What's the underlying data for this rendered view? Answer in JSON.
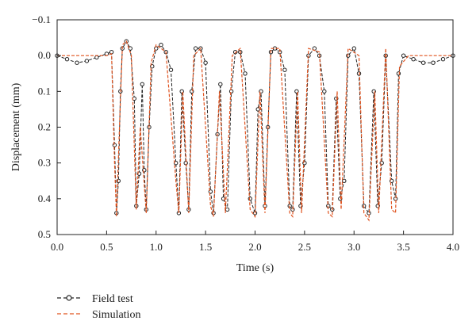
{
  "chart_data": {
    "type": "line",
    "title": "",
    "xlabel": "Time (s)",
    "ylabel": "Displacement (mm)",
    "xlim": [
      0.0,
      4.0
    ],
    "ylim": [
      -0.1,
      0.5
    ],
    "y_inverted": true,
    "grid": false,
    "legend_position": "below-left",
    "x_ticks": [
      0.0,
      0.5,
      1.0,
      1.5,
      2.0,
      2.5,
      3.0,
      3.5,
      4.0
    ],
    "x_tick_labels": [
      "0.0",
      "0.5",
      "1.0",
      "1.5",
      "2.0",
      "2.5",
      "3.0",
      "3.5",
      "4.0"
    ],
    "y_ticks": [
      -0.1,
      0.0,
      0.1,
      0.2,
      0.3,
      0.4,
      0.5
    ],
    "y_tick_labels": [
      "−0.1",
      "0.0",
      "0.1",
      "0.2",
      "0.3",
      "0.4",
      "0.5"
    ],
    "series": [
      {
        "name": "Field test",
        "color": "#222222",
        "style": "dashed-with-circle-markers",
        "points": [
          [
            0.0,
            0.0
          ],
          [
            0.1,
            0.01
          ],
          [
            0.2,
            0.02
          ],
          [
            0.3,
            0.015
          ],
          [
            0.4,
            0.005
          ],
          [
            0.5,
            -0.005
          ],
          [
            0.55,
            -0.01
          ],
          [
            0.58,
            0.25
          ],
          [
            0.6,
            0.44
          ],
          [
            0.62,
            0.35
          ],
          [
            0.64,
            0.1
          ],
          [
            0.66,
            -0.02
          ],
          [
            0.7,
            -0.04
          ],
          [
            0.74,
            -0.02
          ],
          [
            0.78,
            0.12
          ],
          [
            0.8,
            0.42
          ],
          [
            0.83,
            0.33
          ],
          [
            0.86,
            0.08
          ],
          [
            0.88,
            0.32
          ],
          [
            0.9,
            0.43
          ],
          [
            0.93,
            0.2
          ],
          [
            0.96,
            0.03
          ],
          [
            1.0,
            -0.02
          ],
          [
            1.05,
            -0.03
          ],
          [
            1.1,
            -0.01
          ],
          [
            1.15,
            0.04
          ],
          [
            1.2,
            0.3
          ],
          [
            1.23,
            0.44
          ],
          [
            1.26,
            0.1
          ],
          [
            1.3,
            0.3
          ],
          [
            1.33,
            0.43
          ],
          [
            1.36,
            0.1
          ],
          [
            1.4,
            -0.02
          ],
          [
            1.45,
            -0.02
          ],
          [
            1.5,
            0.02
          ],
          [
            1.55,
            0.38
          ],
          [
            1.58,
            0.44
          ],
          [
            1.62,
            0.22
          ],
          [
            1.65,
            0.08
          ],
          [
            1.68,
            0.4
          ],
          [
            1.72,
            0.43
          ],
          [
            1.76,
            0.1
          ],
          [
            1.8,
            -0.01
          ],
          [
            1.85,
            -0.01
          ],
          [
            1.9,
            0.05
          ],
          [
            1.95,
            0.4
          ],
          [
            2.0,
            0.44
          ],
          [
            2.03,
            0.15
          ],
          [
            2.06,
            0.1
          ],
          [
            2.1,
            0.42
          ],
          [
            2.13,
            0.2
          ],
          [
            2.16,
            -0.01
          ],
          [
            2.2,
            -0.02
          ],
          [
            2.25,
            -0.01
          ],
          [
            2.3,
            0.04
          ],
          [
            2.35,
            0.42
          ],
          [
            2.38,
            0.43
          ],
          [
            2.42,
            0.1
          ],
          [
            2.46,
            0.42
          ],
          [
            2.5,
            0.3
          ],
          [
            2.54,
            0.0
          ],
          [
            2.6,
            -0.02
          ],
          [
            2.65,
            0.0
          ],
          [
            2.7,
            0.1
          ],
          [
            2.74,
            0.42
          ],
          [
            2.78,
            0.43
          ],
          [
            2.82,
            0.12
          ],
          [
            2.86,
            0.4
          ],
          [
            2.9,
            0.35
          ],
          [
            2.94,
            0.0
          ],
          [
            3.0,
            -0.02
          ],
          [
            3.05,
            0.05
          ],
          [
            3.1,
            0.42
          ],
          [
            3.15,
            0.44
          ],
          [
            3.2,
            0.1
          ],
          [
            3.24,
            0.42
          ],
          [
            3.28,
            0.3
          ],
          [
            3.32,
            0.0
          ],
          [
            3.38,
            0.35
          ],
          [
            3.42,
            0.4
          ],
          [
            3.45,
            0.05
          ],
          [
            3.5,
            0.0
          ],
          [
            3.6,
            0.01
          ],
          [
            3.7,
            0.02
          ],
          [
            3.8,
            0.02
          ],
          [
            3.9,
            0.01
          ],
          [
            4.0,
            0.0
          ]
        ]
      },
      {
        "name": "Simulation",
        "color": "#e0531f",
        "style": "dashed",
        "points": [
          [
            0.0,
            0.0
          ],
          [
            0.5,
            0.0
          ],
          [
            0.55,
            -0.005
          ],
          [
            0.58,
            0.3
          ],
          [
            0.6,
            0.45
          ],
          [
            0.63,
            0.2
          ],
          [
            0.66,
            -0.03
          ],
          [
            0.7,
            -0.04
          ],
          [
            0.75,
            0.0
          ],
          [
            0.8,
            0.43
          ],
          [
            0.84,
            0.2
          ],
          [
            0.88,
            0.36
          ],
          [
            0.9,
            0.44
          ],
          [
            0.95,
            0.02
          ],
          [
            1.0,
            -0.03
          ],
          [
            1.1,
            -0.01
          ],
          [
            1.2,
            0.35
          ],
          [
            1.23,
            0.44
          ],
          [
            1.27,
            0.1
          ],
          [
            1.33,
            0.44
          ],
          [
            1.38,
            0.0
          ],
          [
            1.45,
            -0.02
          ],
          [
            1.55,
            0.42
          ],
          [
            1.58,
            0.45
          ],
          [
            1.64,
            0.1
          ],
          [
            1.7,
            0.44
          ],
          [
            1.77,
            0.0
          ],
          [
            1.85,
            -0.02
          ],
          [
            1.95,
            0.43
          ],
          [
            2.0,
            0.45
          ],
          [
            2.05,
            0.1
          ],
          [
            2.1,
            0.44
          ],
          [
            2.16,
            -0.02
          ],
          [
            2.25,
            -0.02
          ],
          [
            2.35,
            0.44
          ],
          [
            2.38,
            0.45
          ],
          [
            2.43,
            0.1
          ],
          [
            2.47,
            0.44
          ],
          [
            2.54,
            -0.02
          ],
          [
            2.65,
            -0.01
          ],
          [
            2.74,
            0.44
          ],
          [
            2.78,
            0.45
          ],
          [
            2.83,
            0.1
          ],
          [
            2.87,
            0.43
          ],
          [
            2.94,
            -0.02
          ],
          [
            3.05,
            0.0
          ],
          [
            3.1,
            0.44
          ],
          [
            3.15,
            0.46
          ],
          [
            3.21,
            0.1
          ],
          [
            3.25,
            0.44
          ],
          [
            3.32,
            -0.02
          ],
          [
            3.38,
            0.43
          ],
          [
            3.42,
            0.44
          ],
          [
            3.46,
            0.03
          ],
          [
            3.55,
            0.0
          ],
          [
            4.0,
            0.0
          ]
        ]
      }
    ]
  }
}
